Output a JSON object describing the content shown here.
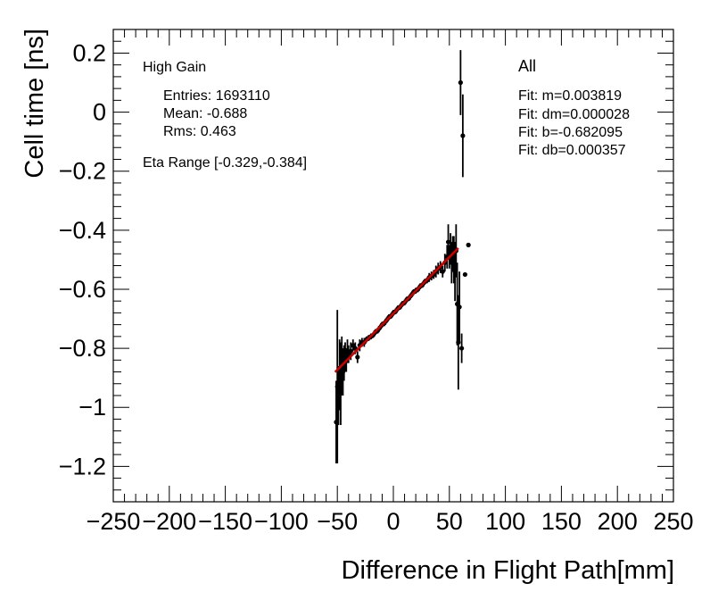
{
  "chart_data": {
    "type": "scatter",
    "xlabel": "Difference in Flight Path[mm]",
    "ylabel": "Cell time [ns]",
    "xlim": [
      -250,
      250
    ],
    "ylim": [
      -1.32,
      0.28
    ],
    "x_ticks": [
      -250,
      -200,
      -150,
      -100,
      -50,
      0,
      50,
      100,
      150,
      200,
      250
    ],
    "x_tick_labels": [
      "−250",
      "−200",
      "−150",
      "−100",
      "−50",
      "0",
      "50",
      "100",
      "150",
      "200",
      "250"
    ],
    "y_ticks": [
      0.2,
      0,
      -0.2,
      -0.4,
      -0.6,
      -0.8,
      -1,
      -1.2
    ],
    "y_tick_labels": [
      "0.2",
      "0",
      "−0.2",
      "−0.4",
      "−0.6",
      "−0.8",
      "−1",
      "−1.2"
    ],
    "legend": {
      "title": "High Gain",
      "entries": "Entries: 1693110",
      "mean": "Mean: -0.688",
      "rms": "Rms: 0.463",
      "eta_range": "Eta Range [-0.329,-0.384]"
    },
    "fit_box": {
      "title": "All",
      "m": "Fit: m=0.003819",
      "dm": "Fit: dm=0.000028",
      "b": "Fit: b=-0.682095",
      "db": "Fit: db=0.000357"
    },
    "fit": {
      "slope": 0.003819,
      "intercept": -0.682095,
      "x_range": [
        -52,
        58
      ],
      "color": "#cc0000"
    },
    "series": [
      {
        "name": "data",
        "points": [
          {
            "x": -51,
            "y": -1.05,
            "err": 0.14
          },
          {
            "x": -50,
            "y": -0.93,
            "err": 0.26
          },
          {
            "x": -49,
            "y": -0.96,
            "err": 0.1
          },
          {
            "x": -48,
            "y": -0.89,
            "err": 0.12
          },
          {
            "x": -47,
            "y": -0.92,
            "err": 0.14
          },
          {
            "x": -46,
            "y": -0.86,
            "err": 0.1
          },
          {
            "x": -45,
            "y": -0.88,
            "err": 0.08
          },
          {
            "x": -44,
            "y": -0.85,
            "err": 0.06
          },
          {
            "x": -43,
            "y": -0.83,
            "err": 0.05
          },
          {
            "x": -42,
            "y": -0.84,
            "err": 0.04
          },
          {
            "x": -41,
            "y": -0.81,
            "err": 0.04
          },
          {
            "x": -40,
            "y": -0.82,
            "err": 0.03
          },
          {
            "x": -38,
            "y": -0.81,
            "err": 0.03
          },
          {
            "x": -36,
            "y": -0.79,
            "err": 0.02
          },
          {
            "x": -34,
            "y": -0.8,
            "err": 0.02
          },
          {
            "x": -32,
            "y": -0.83,
            "err": 0.02
          },
          {
            "x": -30,
            "y": -0.79,
            "err": 0.02
          },
          {
            "x": -28,
            "y": -0.78,
            "err": 0.015
          },
          {
            "x": -26,
            "y": -0.78,
            "err": 0.015
          },
          {
            "x": -24,
            "y": -0.77,
            "err": 0.01
          },
          {
            "x": -22,
            "y": -0.765,
            "err": 0.01
          },
          {
            "x": -20,
            "y": -0.76,
            "err": 0.01
          },
          {
            "x": -18,
            "y": -0.755,
            "err": 0.01
          },
          {
            "x": -16,
            "y": -0.745,
            "err": 0.01
          },
          {
            "x": -14,
            "y": -0.74,
            "err": 0.01
          },
          {
            "x": -12,
            "y": -0.73,
            "err": 0.01
          },
          {
            "x": -10,
            "y": -0.72,
            "err": 0.01
          },
          {
            "x": -8,
            "y": -0.715,
            "err": 0.01
          },
          {
            "x": -6,
            "y": -0.705,
            "err": 0.01
          },
          {
            "x": -4,
            "y": -0.695,
            "err": 0.01
          },
          {
            "x": -2,
            "y": -0.69,
            "err": 0.01
          },
          {
            "x": 0,
            "y": -0.68,
            "err": 0.01
          },
          {
            "x": 2,
            "y": -0.675,
            "err": 0.01
          },
          {
            "x": 4,
            "y": -0.665,
            "err": 0.01
          },
          {
            "x": 6,
            "y": -0.66,
            "err": 0.01
          },
          {
            "x": 8,
            "y": -0.65,
            "err": 0.01
          },
          {
            "x": 10,
            "y": -0.645,
            "err": 0.01
          },
          {
            "x": 12,
            "y": -0.635,
            "err": 0.01
          },
          {
            "x": 14,
            "y": -0.63,
            "err": 0.01
          },
          {
            "x": 16,
            "y": -0.62,
            "err": 0.01
          },
          {
            "x": 18,
            "y": -0.61,
            "err": 0.01
          },
          {
            "x": 20,
            "y": -0.605,
            "err": 0.01
          },
          {
            "x": 22,
            "y": -0.6,
            "err": 0.01
          },
          {
            "x": 24,
            "y": -0.59,
            "err": 0.01
          },
          {
            "x": 26,
            "y": -0.585,
            "err": 0.01
          },
          {
            "x": 28,
            "y": -0.575,
            "err": 0.01
          },
          {
            "x": 30,
            "y": -0.57,
            "err": 0.01
          },
          {
            "x": 32,
            "y": -0.56,
            "err": 0.015
          },
          {
            "x": 34,
            "y": -0.555,
            "err": 0.015
          },
          {
            "x": 36,
            "y": -0.55,
            "err": 0.015
          },
          {
            "x": 38,
            "y": -0.54,
            "err": 0.02
          },
          {
            "x": 40,
            "y": -0.53,
            "err": 0.02
          },
          {
            "x": 42,
            "y": -0.525,
            "err": 0.02
          },
          {
            "x": 44,
            "y": -0.54,
            "err": 0.02
          },
          {
            "x": 46,
            "y": -0.51,
            "err": 0.03
          },
          {
            "x": 48,
            "y": -0.49,
            "err": 0.04
          },
          {
            "x": 49,
            "y": -0.44,
            "err": 0.06
          },
          {
            "x": 50,
            "y": -0.49,
            "err": 0.04
          },
          {
            "x": 51,
            "y": -0.46,
            "err": 0.05
          },
          {
            "x": 52,
            "y": -0.51,
            "err": 0.07
          },
          {
            "x": 53,
            "y": -0.48,
            "err": 0.06
          },
          {
            "x": 54,
            "y": -0.5,
            "err": 0.08
          },
          {
            "x": 55,
            "y": -0.54,
            "err": 0.1
          },
          {
            "x": 56,
            "y": -0.47,
            "err": 0.09
          },
          {
            "x": 57,
            "y": -0.65,
            "err": 0.14
          },
          {
            "x": 58,
            "y": -0.78,
            "err": 0.16
          },
          {
            "x": 59,
            "y": -0.66,
            "err": 0.12
          },
          {
            "x": 60,
            "y": 0.1,
            "err": 0.11
          },
          {
            "x": 61,
            "y": -0.8,
            "err": 0.05
          },
          {
            "x": 62,
            "y": -0.08,
            "err": 0.14
          },
          {
            "x": 64,
            "y": -0.55,
            "err": 0.0
          },
          {
            "x": 67,
            "y": -0.45,
            "err": 0.0
          }
        ]
      }
    ]
  }
}
